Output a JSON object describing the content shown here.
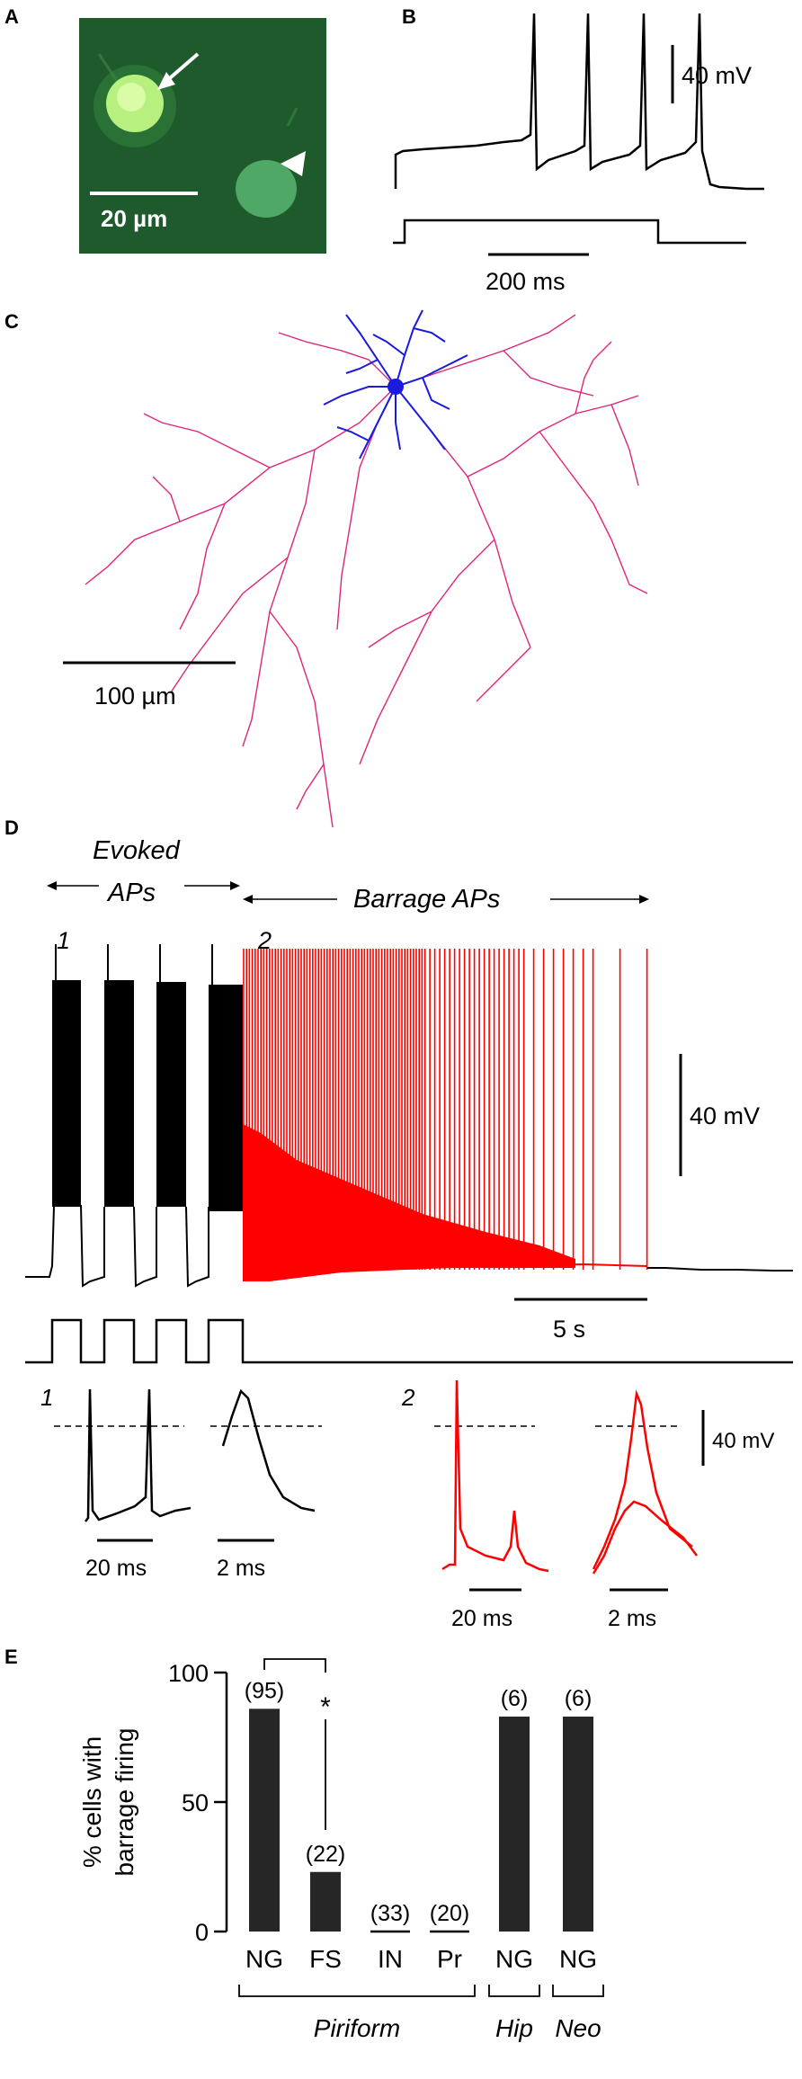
{
  "panels": {
    "A": {
      "label": "A",
      "scale_bar": "20 µm",
      "markers": [
        "arrow-icon",
        "arrowhead-icon"
      ],
      "colors": {
        "background": "#1f5a2c",
        "bright_cell": "#b8f080",
        "dim_cell": "#4fa865"
      }
    },
    "B": {
      "label": "B",
      "voltage_scale": "40 mV",
      "time_scale": "200 ms"
    },
    "C": {
      "label": "C",
      "scale_bar": "100 µm",
      "colors": {
        "dendrite": "#1a1ae0",
        "axon": "#e0247a"
      }
    },
    "D": {
      "label": "D",
      "evoked_label_1": "Evoked",
      "evoked_label_2": "APs",
      "barrage_label": "Barrage APs",
      "segment_1": "1",
      "segment_2": "2",
      "voltage_scale": "40 mV",
      "time_scale": "5 s",
      "inset_1_label": "1",
      "inset_1_time_a": "20 ms",
      "inset_1_time_b": "2 ms",
      "inset_2_label": "2",
      "inset_2_time_a": "20 ms",
      "inset_2_time_b": "2 ms",
      "inset_voltage_scale": "40 mV",
      "colors": {
        "evoked": "#000000",
        "barrage": "#ff0000"
      }
    },
    "E": {
      "label": "E",
      "significance_marker": "*",
      "groups": [
        {
          "name": "Piriform",
          "bars": [
            0,
            1,
            2,
            3
          ]
        },
        {
          "name": "Hip",
          "bars": [
            4
          ]
        },
        {
          "name": "Neo",
          "bars": [
            5
          ]
        }
      ]
    }
  },
  "chart_data": {
    "type": "bar",
    "categories": [
      "NG",
      "FS",
      "IN",
      "Pr",
      "NG",
      "NG"
    ],
    "values": [
      86,
      23,
      0,
      0,
      83,
      83
    ],
    "n_labels": [
      "(95)",
      "(22)",
      "(33)",
      "(20)",
      "(6)",
      "(6)"
    ],
    "title": "",
    "xlabel": "",
    "ylabel": "% cells with barrage firing",
    "ylabel_lines": [
      "% cells with",
      "barrage firing"
    ],
    "ylim": [
      0,
      100
    ],
    "yticks": [
      0,
      50,
      100
    ],
    "grid": false,
    "bar_color": "#262626"
  }
}
